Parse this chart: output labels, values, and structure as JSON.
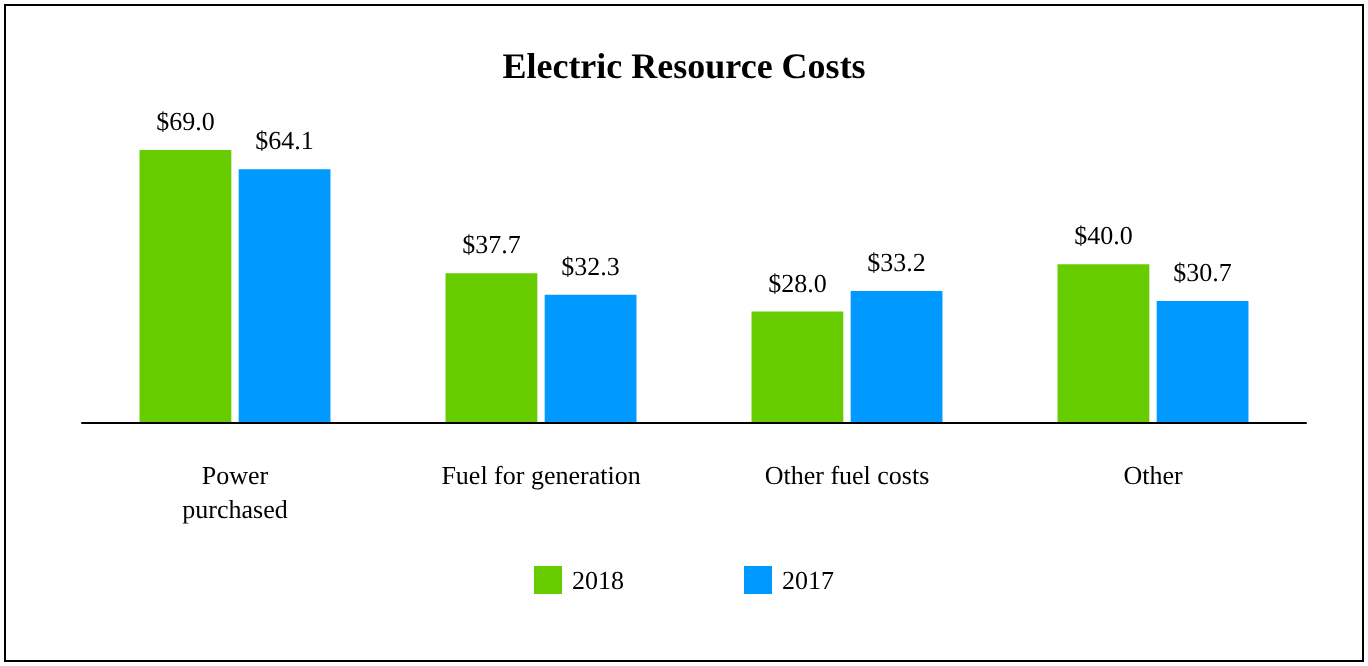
{
  "chart_data": {
    "type": "bar",
    "title": "Electric Resource Costs",
    "categories": [
      "Power\npurchased",
      "Fuel for generation",
      "Other fuel costs",
      "Other"
    ],
    "series": [
      {
        "name": "2018",
        "color": "#66cc00",
        "values": [
          69.0,
          37.7,
          28.0,
          40.0
        ],
        "value_labels": [
          "$69.0",
          "$37.7",
          "$28.0",
          "$40.0"
        ]
      },
      {
        "name": "2017",
        "color": "#0099ff",
        "values": [
          64.1,
          32.3,
          33.2,
          30.7
        ],
        "value_labels": [
          "$64.1",
          "$32.3",
          "$33.2",
          "$30.7"
        ]
      }
    ],
    "legend": "bottom",
    "grid": false
  }
}
